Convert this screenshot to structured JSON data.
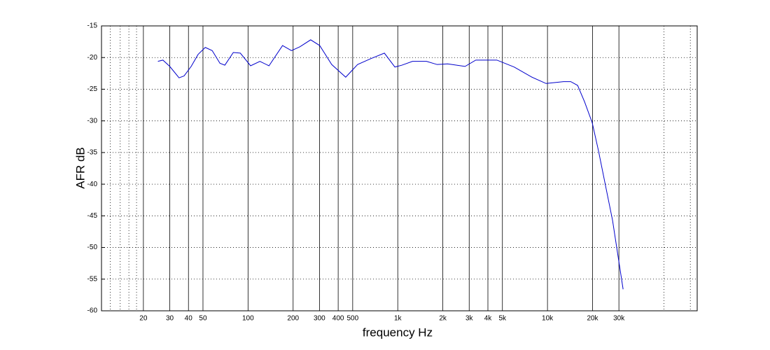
{
  "chart_data": {
    "type": "line",
    "xlabel": "frequency   Hz",
    "ylabel": "AFR dB",
    "xscale": "log",
    "xlim": [
      10.5,
      100000
    ],
    "ylim": [
      -60,
      -15
    ],
    "xticks": [
      20,
      30,
      40,
      50,
      100,
      200,
      300,
      400,
      500,
      {
        "value": 1000,
        "label": "1k"
      },
      {
        "value": 2000,
        "label": "2k"
      },
      {
        "value": 3000,
        "label": "3k"
      },
      {
        "value": 4000,
        "label": "4k"
      },
      {
        "value": 5000,
        "label": "5k"
      },
      {
        "value": 10000,
        "label": "10k"
      },
      {
        "value": 20000,
        "label": "20k"
      },
      {
        "value": 30000,
        "label": "30k"
      }
    ],
    "x_minor_grid": [
      12,
      14,
      16,
      18,
      60000,
      90000
    ],
    "yticks": [
      -60,
      -55,
      -50,
      -45,
      -40,
      -35,
      -30,
      -25,
      -20,
      -15
    ],
    "grid": true,
    "color": "#0000cc",
    "x": [
      25,
      27,
      30,
      34.6,
      37.4,
      41.7,
      46.4,
      51.8,
      57.6,
      64.9,
      70,
      79.7,
      88.8,
      104,
      120,
      138,
      170,
      195,
      222,
      262,
      301,
      362,
      449,
      539,
      656,
      814,
      957,
      1067,
      1254,
      1556,
      1832,
      2153,
      2815,
      3320,
      4591,
      5997,
      7880,
      9785,
      12800,
      14300,
      15900,
      17700,
      19900,
      21900,
      24400,
      27200,
      32000
    ],
    "values": [
      -20.6,
      -20.4,
      -21.4,
      -23.2,
      -22.9,
      -21.4,
      -19.5,
      -18.4,
      -18.9,
      -20.9,
      -21.2,
      -19.2,
      -19.3,
      -21.3,
      -20.6,
      -21.3,
      -18.1,
      -18.9,
      -18.3,
      -17.2,
      -18.1,
      -21.1,
      -23.1,
      -21.1,
      -20.2,
      -19.3,
      -21.5,
      -21.2,
      -20.6,
      -20.6,
      -21.1,
      -21.0,
      -21.4,
      -20.4,
      -20.4,
      -21.5,
      -23.1,
      -24.1,
      -23.8,
      -23.8,
      -24.4,
      -27.0,
      -30.3,
      -34.7,
      -40.2,
      -45.7,
      -56.6
    ]
  }
}
